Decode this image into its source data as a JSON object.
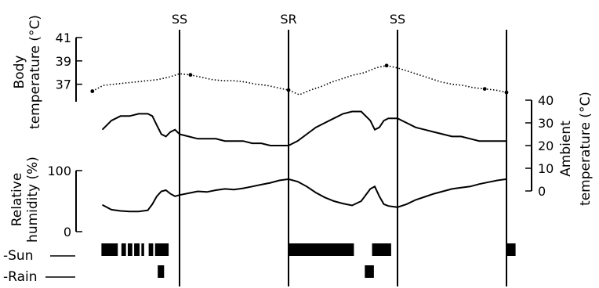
{
  "chart_data": {
    "type": "line",
    "event_markers": [
      {
        "label": "SS",
        "hour": 0
      },
      {
        "label": "SR",
        "hour": 12
      },
      {
        "label": "SS",
        "hour": 24
      },
      {
        "label": "",
        "hour": 36
      }
    ],
    "x_range_hours": [
      -9.5,
      36
    ],
    "series": [
      {
        "key": "body_temperature",
        "axis_label": "Body temperature (°C)",
        "style": "dotted",
        "ylim": [
          35.5,
          41
        ],
        "ticks": [
          "41",
          "39",
          "37"
        ],
        "x": [
          -9.6,
          -8.4,
          -7.2,
          -6,
          -4.8,
          -3.6,
          -2.4,
          -1.2,
          0,
          1.2,
          2.4,
          3.6,
          4.8,
          6,
          7.2,
          8.4,
          9.6,
          10.8,
          12,
          13.2,
          14.4,
          15.6,
          16.8,
          18,
          19.2,
          20.4,
          21.6,
          22.8,
          24,
          25.2,
          26.4,
          27.6,
          28.8,
          30,
          31.2,
          32.4,
          33.6,
          34.8,
          36
        ],
        "values": [
          36.4,
          36.9,
          37.0,
          37.1,
          37.2,
          37.3,
          37.4,
          37.6,
          37.9,
          37.8,
          37.6,
          37.4,
          37.3,
          37.3,
          37.2,
          37.0,
          36.9,
          36.7,
          36.5,
          36.1,
          36.5,
          36.8,
          37.2,
          37.5,
          37.8,
          38.0,
          38.4,
          38.6,
          38.4,
          38.1,
          37.8,
          37.5,
          37.2,
          37.0,
          36.9,
          36.7,
          36.6,
          36.5,
          36.3
        ]
      },
      {
        "key": "ambient_temperature",
        "axis_label": "Ambient temperature (°C)",
        "style": "solid",
        "ylim": [
          0,
          40
        ],
        "ticks": [
          "40",
          "30",
          "20",
          "10",
          "0"
        ],
        "x": [
          -8.5,
          -7.5,
          -6.5,
          -5.5,
          -4.5,
          -3.5,
          -3,
          -2.5,
          -2,
          -1.5,
          -1,
          -0.5,
          0,
          1,
          2,
          3,
          4,
          5,
          6,
          7,
          8,
          9,
          10,
          11,
          12,
          13,
          14,
          15,
          16,
          17,
          18,
          19,
          20,
          21,
          21.5,
          22,
          22.5,
          23,
          24,
          25,
          26,
          27,
          28,
          29,
          30,
          31,
          32,
          33,
          34,
          35,
          36
        ],
        "values": [
          27,
          31,
          33,
          33,
          34,
          34,
          33,
          29,
          25,
          24,
          26,
          27,
          25,
          24,
          23,
          23,
          23,
          22,
          22,
          22,
          21,
          21,
          20,
          20,
          20,
          22,
          25,
          28,
          30,
          32,
          34,
          35,
          35,
          31,
          27,
          28,
          31,
          32,
          32,
          30,
          28,
          27,
          26,
          25,
          24,
          24,
          23,
          22,
          22,
          22,
          22
        ]
      },
      {
        "key": "relative_humidity",
        "axis_label": "Relative humidity (%)",
        "style": "solid",
        "ylim": [
          0,
          100
        ],
        "ticks": [
          "100",
          "0"
        ],
        "x": [
          -8.5,
          -7.5,
          -6.5,
          -5.5,
          -4.5,
          -3.5,
          -3,
          -2.5,
          -2,
          -1.5,
          -1,
          -0.5,
          0,
          1,
          2,
          3,
          4,
          5,
          6,
          7,
          8,
          9,
          10,
          11,
          12,
          13,
          14,
          15,
          16,
          17,
          18,
          19,
          20,
          21,
          21.5,
          22,
          22.5,
          23,
          24,
          25,
          26,
          27,
          28,
          29,
          30,
          31,
          32,
          33,
          34,
          35,
          36
        ],
        "values": [
          44,
          36,
          34,
          33,
          33,
          35,
          45,
          58,
          66,
          68,
          62,
          58,
          60,
          63,
          66,
          65,
          68,
          70,
          69,
          71,
          74,
          77,
          80,
          84,
          86,
          82,
          74,
          64,
          56,
          50,
          46,
          43,
          50,
          70,
          74,
          58,
          45,
          42,
          40,
          45,
          52,
          57,
          62,
          66,
          70,
          72,
          74,
          78,
          81,
          84,
          86
        ]
      }
    ],
    "sun_periods": [
      [
        -8.6,
        -6.8
      ],
      [
        -6.4,
        -5.9
      ],
      [
        -5.7,
        -5.2
      ],
      [
        -5,
        -4.4
      ],
      [
        -4.2,
        -3.9
      ],
      [
        -3.4,
        -2.9
      ],
      [
        -2.7,
        -1.2
      ],
      [
        12,
        19.2
      ],
      [
        21.2,
        23.3
      ],
      [
        36,
        37
      ]
    ],
    "rain_periods": [
      [
        -2.4,
        -1.7
      ],
      [
        20.4,
        21.4
      ]
    ],
    "row_labels": [
      "-Sun",
      "-Rain"
    ]
  }
}
